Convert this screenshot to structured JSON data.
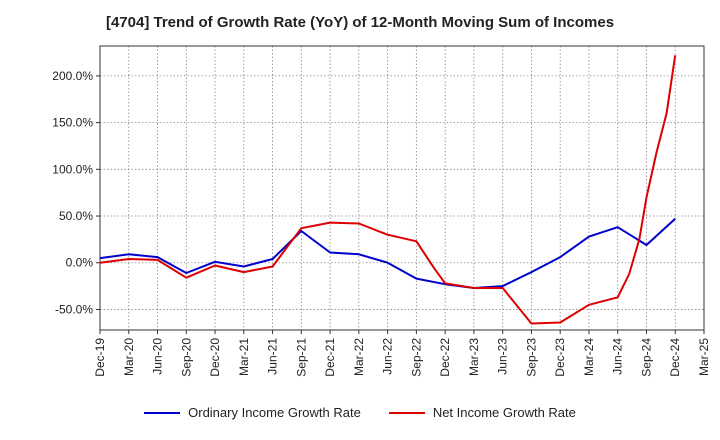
{
  "chart_data": {
    "type": "line",
    "title": "[4704]  Trend of Growth Rate (YoY) of 12-Month Moving Sum of Incomes",
    "xlabel": "",
    "ylabel": "",
    "x_tick_labels": [
      "Dec-19",
      "Mar-20",
      "Jun-20",
      "Sep-20",
      "Dec-20",
      "Mar-21",
      "Jun-21",
      "Sep-21",
      "Dec-21",
      "Mar-22",
      "Jun-22",
      "Sep-22",
      "Dec-22",
      "Mar-23",
      "Jun-23",
      "Sep-23",
      "Dec-23",
      "Mar-24",
      "Jun-24",
      "Sep-24",
      "Dec-24",
      "Mar-25"
    ],
    "y_tick_labels": [
      "-50.0%",
      "0.0%",
      "50.0%",
      "100.0%",
      "150.0%",
      "200.0%"
    ],
    "y_ticks": [
      -50,
      0,
      50,
      100,
      150,
      200
    ],
    "ylim": [
      -72,
      232
    ],
    "x_range_quarters": [
      0,
      21
    ],
    "grid": true,
    "legend_position": "bottom",
    "series": [
      {
        "name": "Ordinary Income Growth Rate",
        "color": "#0000cc",
        "x": [
          0,
          1,
          2,
          3,
          4,
          5,
          6,
          7,
          8,
          9,
          10,
          11,
          12,
          13,
          14,
          15,
          16,
          17,
          18,
          19,
          20
        ],
        "values": [
          5,
          9,
          6,
          -11,
          1,
          -4,
          4,
          34,
          11,
          9,
          0,
          -17,
          -23,
          -27,
          -25,
          -10,
          6,
          28,
          38,
          19,
          47
        ]
      },
      {
        "name": "Net Income Growth Rate",
        "color": "#dd0000",
        "x": [
          0,
          1,
          2,
          3,
          4,
          5,
          6,
          7,
          8,
          9,
          10,
          11,
          11.6,
          12,
          13,
          14,
          15,
          16,
          17,
          18,
          18.4,
          18.75,
          19,
          19.35,
          19.7,
          20
        ],
        "values": [
          0,
          4,
          3,
          -16,
          -3,
          -10,
          -4,
          37,
          43,
          42,
          30,
          23,
          -5,
          -22,
          -27,
          -27,
          -65,
          -64,
          -45,
          -37,
          -12,
          25,
          70,
          118,
          160,
          222
        ]
      }
    ]
  }
}
